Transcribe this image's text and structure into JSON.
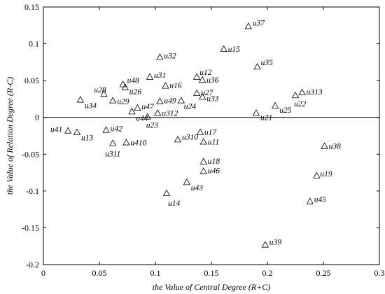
{
  "chart_data": {
    "type": "scatter",
    "title": "",
    "xlabel": "the Value of Central Degree (R+C)",
    "ylabel": "the Value of Relation Degree (R-C)",
    "xlim": [
      0,
      0.3
    ],
    "ylim": [
      -0.2,
      0.15
    ],
    "x_ticks": [
      "0",
      "0.05",
      "0.1",
      "0.15",
      "0.2",
      "0.25",
      "0.3"
    ],
    "y_ticks": [
      "-0.2",
      "-0.15",
      "-0.1",
      "-0.05",
      "0",
      "0.05",
      "0.1",
      "0.15"
    ],
    "grid": false,
    "zero_line": true,
    "marker": "open-triangle",
    "points": [
      {
        "label": "u37",
        "x": 0.183,
        "y": 0.124
      },
      {
        "label": "u15",
        "x": 0.161,
        "y": 0.093
      },
      {
        "label": "u32",
        "x": 0.104,
        "y": 0.082
      },
      {
        "label": "u35",
        "x": 0.191,
        "y": 0.069
      },
      {
        "label": "u31",
        "x": 0.095,
        "y": 0.055
      },
      {
        "label": "u12",
        "x": 0.137,
        "y": 0.055
      },
      {
        "label": "u36",
        "x": 0.142,
        "y": 0.051
      },
      {
        "label": "u48",
        "x": 0.071,
        "y": 0.045
      },
      {
        "label": "u28",
        "x": 0.054,
        "y": 0.032
      },
      {
        "label": "u26",
        "x": 0.073,
        "y": 0.041
      },
      {
        "label": "u16",
        "x": 0.109,
        "y": 0.043
      },
      {
        "label": "u313",
        "x": 0.231,
        "y": 0.034
      },
      {
        "label": "u27",
        "x": 0.137,
        "y": 0.033
      },
      {
        "label": "u22",
        "x": 0.225,
        "y": 0.03
      },
      {
        "label": "u33",
        "x": 0.142,
        "y": 0.028
      },
      {
        "label": "u34",
        "x": 0.033,
        "y": 0.024
      },
      {
        "label": "u29",
        "x": 0.062,
        "y": 0.023
      },
      {
        "label": "u49",
        "x": 0.104,
        "y": 0.022
      },
      {
        "label": "u24",
        "x": 0.123,
        "y": 0.023
      },
      {
        "label": "u47",
        "x": 0.084,
        "y": 0.013
      },
      {
        "label": "u25",
        "x": 0.207,
        "y": 0.016
      },
      {
        "label": "u312",
        "x": 0.102,
        "y": 0.006
      },
      {
        "label": "u44",
        "x": 0.079,
        "y": 0.008
      },
      {
        "label": "u21",
        "x": 0.19,
        "y": 0.006
      },
      {
        "label": "u23",
        "x": 0.093,
        "y": 0.001
      },
      {
        "label": "u41",
        "x": 0.022,
        "y": -0.018
      },
      {
        "label": "u42",
        "x": 0.056,
        "y": -0.017
      },
      {
        "label": "u13",
        "x": 0.03,
        "y": -0.02
      },
      {
        "label": "u17",
        "x": 0.14,
        "y": -0.02
      },
      {
        "label": "u310",
        "x": 0.12,
        "y": -0.03
      },
      {
        "label": "u11",
        "x": 0.143,
        "y": -0.033
      },
      {
        "label": "u410",
        "x": 0.074,
        "y": -0.034
      },
      {
        "label": "u311",
        "x": 0.062,
        "y": -0.035
      },
      {
        "label": "u38",
        "x": 0.251,
        "y": -0.039
      },
      {
        "label": "u18",
        "x": 0.143,
        "y": -0.06
      },
      {
        "label": "u46",
        "x": 0.143,
        "y": -0.073
      },
      {
        "label": "u19",
        "x": 0.244,
        "y": -0.079
      },
      {
        "label": "u43",
        "x": 0.128,
        "y": -0.088
      },
      {
        "label": "u14",
        "x": 0.11,
        "y": -0.103
      },
      {
        "label": "u45",
        "x": 0.238,
        "y": -0.114
      },
      {
        "label": "u39",
        "x": 0.198,
        "y": -0.173
      }
    ]
  }
}
